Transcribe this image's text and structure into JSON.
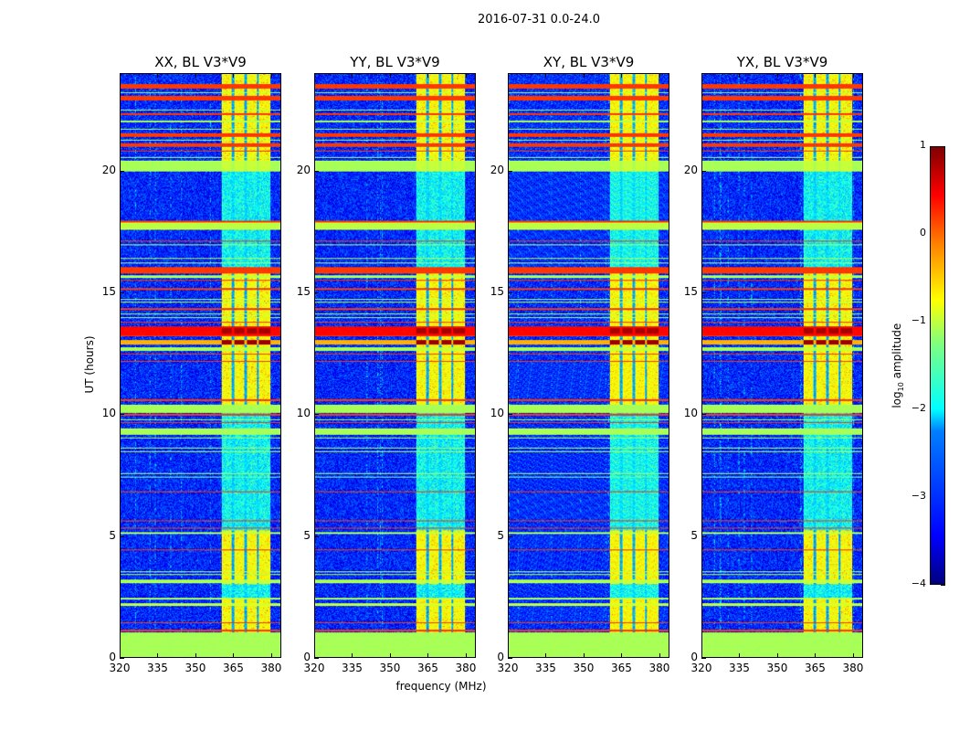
{
  "suptitle": "2016-07-31 0.0-24.0",
  "chart_data": {
    "type": "heatmap",
    "panels": [
      {
        "title": "XX, BL V3*V9",
        "seed": 11
      },
      {
        "title": "YY, BL V3*V9",
        "seed": 23
      },
      {
        "title": "XY, BL V3*V9",
        "seed": 37
      },
      {
        "title": "YX, BL V3*V9",
        "seed": 53
      }
    ],
    "xlabel": "frequency (MHz)",
    "ylabel": "UT (hours)",
    "xlim": [
      320,
      384
    ],
    "ylim": [
      0,
      24
    ],
    "xticks": [
      "320",
      "335",
      "350",
      "365",
      "380"
    ],
    "yticks": [
      "0",
      "5",
      "10",
      "15",
      "20"
    ],
    "colorbar": {
      "label": "log10 amplitude",
      "label_main": "log",
      "label_sub": "10",
      "label_rest": " amplitude",
      "colormap": "jet",
      "range": [
        -4,
        1
      ],
      "ticks": [
        "−4",
        "−3",
        "−2",
        "−1",
        "0",
        "1"
      ]
    },
    "background_level": -3.2,
    "bright_band_mhz": [
      360.5,
      380
    ],
    "bright_gaps_mhz": [
      365,
      370,
      375
    ],
    "bright_active_hours": [
      [
        1.0,
        2.45
      ],
      [
        3.0,
        5.2
      ],
      [
        10.4,
        15.8
      ],
      [
        20.0,
        24.0
      ]
    ],
    "bright_level": -0.9,
    "bright_idle_level": -2.1,
    "bands_hours": [
      [
        0.0,
        1.0,
        -1.3
      ],
      [
        1.05,
        1.12,
        0.1
      ],
      [
        1.3,
        1.33,
        -1.3
      ],
      [
        1.4,
        1.43,
        0.1
      ],
      [
        1.75,
        1.78,
        -1.3
      ],
      [
        2.1,
        2.2,
        -1.2
      ],
      [
        2.35,
        2.45,
        -1.3
      ],
      [
        3.05,
        3.2,
        -1.3
      ],
      [
        3.37,
        3.4,
        -1.3
      ],
      [
        3.5,
        3.53,
        -1.3
      ],
      [
        4.4,
        4.43,
        0.1
      ],
      [
        4.6,
        4.63,
        -1.3
      ],
      [
        5.05,
        5.15,
        -1.3
      ],
      [
        5.3,
        5.33,
        0.1
      ],
      [
        5.6,
        5.63,
        0.1
      ],
      [
        6.1,
        6.13,
        -1.3
      ],
      [
        6.25,
        6.28,
        -1.6
      ],
      [
        6.4,
        6.43,
        -1.3
      ],
      [
        6.55,
        6.58,
        -1.6
      ],
      [
        6.7,
        6.73,
        -1.3
      ],
      [
        6.8,
        6.83,
        0.1
      ],
      [
        7.0,
        7.03,
        -1.3
      ],
      [
        7.15,
        7.18,
        -1.3
      ],
      [
        7.4,
        7.43,
        -1.6
      ],
      [
        7.55,
        7.58,
        -1.3
      ],
      [
        8.45,
        8.48,
        -1.3
      ],
      [
        8.6,
        8.63,
        -1.3
      ],
      [
        8.8,
        8.83,
        -1.3
      ],
      [
        9.0,
        9.03,
        -1.3
      ],
      [
        9.1,
        9.13,
        0.1
      ],
      [
        9.15,
        9.4,
        -1.3
      ],
      [
        9.65,
        9.68,
        0.1
      ],
      [
        9.75,
        9.78,
        -1.3
      ],
      [
        9.95,
        10.0,
        0.1
      ],
      [
        10.05,
        10.4,
        -1.3
      ],
      [
        10.55,
        10.62,
        0.1
      ],
      [
        11.8,
        11.83,
        -1.3
      ],
      [
        12.15,
        12.2,
        0.1
      ],
      [
        12.45,
        12.5,
        0.1
      ],
      [
        12.6,
        12.75,
        -1.3
      ],
      [
        12.85,
        13.05,
        -0.5
      ],
      [
        13.2,
        13.25,
        0.1
      ],
      [
        13.25,
        13.6,
        0.35
      ],
      [
        13.75,
        13.8,
        0.1
      ],
      [
        13.95,
        14.0,
        -1.3
      ],
      [
        14.1,
        14.13,
        -1.3
      ],
      [
        14.3,
        14.38,
        0.1
      ],
      [
        14.6,
        14.63,
        -1.3
      ],
      [
        14.7,
        14.73,
        -1.3
      ],
      [
        15.1,
        15.18,
        0.1
      ],
      [
        15.4,
        15.43,
        -1.3
      ],
      [
        15.5,
        15.53,
        0.1
      ],
      [
        15.6,
        15.7,
        -1.3
      ],
      [
        15.8,
        16.05,
        0.1
      ],
      [
        16.2,
        16.23,
        -1.3
      ],
      [
        16.4,
        16.43,
        -1.3
      ],
      [
        16.95,
        17.0,
        -1.3
      ],
      [
        17.1,
        17.13,
        0.1
      ],
      [
        17.2,
        17.23,
        0.1
      ],
      [
        17.5,
        17.53,
        -1.3
      ],
      [
        17.6,
        17.9,
        -1.2
      ],
      [
        17.9,
        17.95,
        0.1
      ],
      [
        19.6,
        19.63,
        -1.3
      ],
      [
        20.0,
        20.45,
        -1.3
      ],
      [
        20.55,
        20.6,
        -1.3
      ],
      [
        20.8,
        20.85,
        0.1
      ],
      [
        21.0,
        21.15,
        0.1
      ],
      [
        21.25,
        21.3,
        -1.3
      ],
      [
        21.4,
        21.55,
        0.1
      ],
      [
        21.7,
        21.75,
        -1.3
      ],
      [
        22.0,
        22.1,
        -1.3
      ],
      [
        22.3,
        22.4,
        0.1
      ],
      [
        22.5,
        22.55,
        -1.3
      ],
      [
        22.9,
        23.1,
        0.1
      ],
      [
        23.2,
        23.25,
        -1.3
      ],
      [
        23.4,
        23.6,
        0.1
      ]
    ],
    "hot_bands_hours": [
      [
        12.85,
        13.05,
        0.85
      ],
      [
        13.3,
        13.55,
        0.8
      ]
    ]
  }
}
